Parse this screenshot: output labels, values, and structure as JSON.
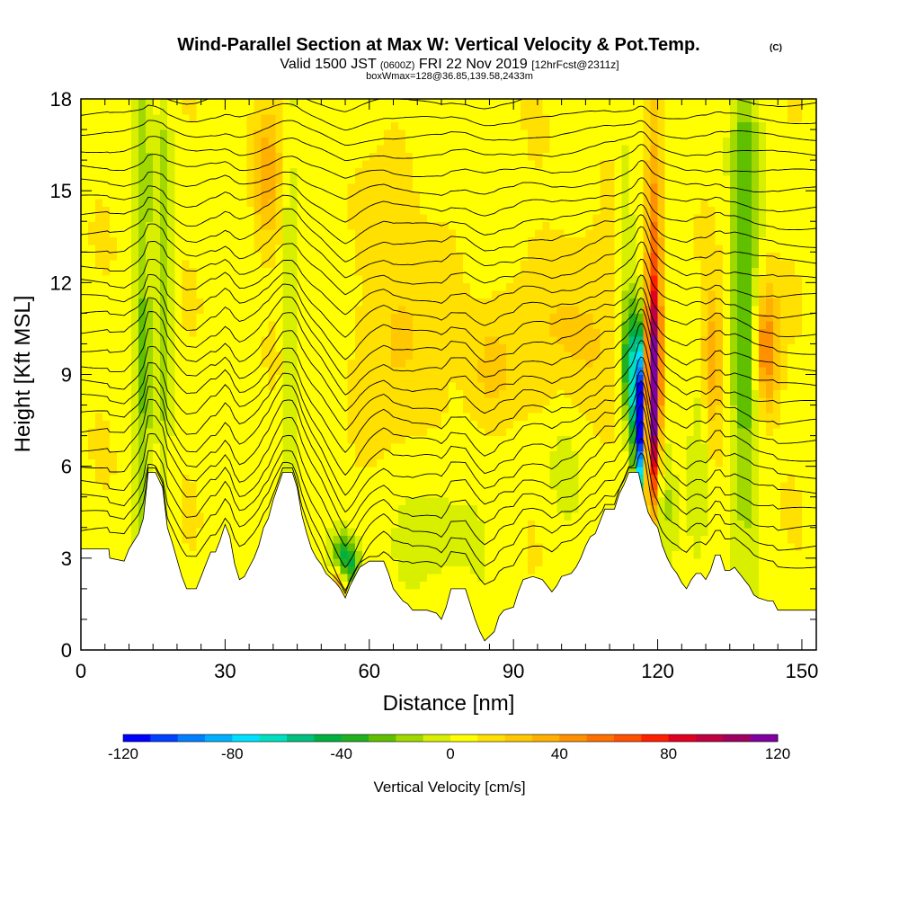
{
  "titles": {
    "main": "Wind-Parallel Section at Max W: Vertical Velocity & Pot.Temp.",
    "copyright": "(C)",
    "valid_prefix": "Valid 1500 JST",
    "valid_utc": "(0600Z)",
    "valid_date": "FRI 22 Nov 2019",
    "forecast": "[12hrFcst@2311z]",
    "box_info": "boxWmax=128@36.85,139.58,2433m"
  },
  "chart_data": {
    "type": "heatmap",
    "xlabel": "Distance [nm]",
    "ylabel": "Height [Kft MSL]",
    "xlim": [
      0,
      153
    ],
    "ylim": [
      0,
      18
    ],
    "x_ticks": [
      0,
      30,
      60,
      90,
      120,
      150
    ],
    "y_ticks": [
      0,
      3,
      6,
      9,
      12,
      15,
      18
    ],
    "terrain": [
      [
        0,
        3.3
      ],
      [
        5,
        3.3
      ],
      [
        5.8,
        3.3
      ],
      [
        6,
        3.0
      ],
      [
        9,
        2.9
      ],
      [
        10,
        3.3
      ],
      [
        12,
        3.8
      ],
      [
        13,
        4.3
      ],
      [
        14,
        5.8
      ],
      [
        15.5,
        5.8
      ],
      [
        17,
        5.3
      ],
      [
        18,
        4.0
      ],
      [
        19,
        3.5
      ],
      [
        21,
        2.4
      ],
      [
        22,
        2.0
      ],
      [
        24,
        2.0
      ],
      [
        25,
        2.4
      ],
      [
        26,
        2.8
      ],
      [
        27,
        3.2
      ],
      [
        28,
        3.2
      ],
      [
        29,
        3.6
      ],
      [
        30,
        4.1
      ],
      [
        31,
        3.7
      ],
      [
        32,
        2.8
      ],
      [
        33,
        2.3
      ],
      [
        34,
        2.4
      ],
      [
        35,
        2.7
      ],
      [
        36,
        3.0
      ],
      [
        37,
        3.4
      ],
      [
        38,
        4.0
      ],
      [
        39,
        4.3
      ],
      [
        40,
        4.9
      ],
      [
        42,
        5.8
      ],
      [
        44,
        5.8
      ],
      [
        45,
        5.3
      ],
      [
        46,
        4.4
      ],
      [
        47,
        3.8
      ],
      [
        48,
        3.3
      ],
      [
        49,
        3.0
      ],
      [
        50,
        2.8
      ],
      [
        51,
        2.5
      ],
      [
        53,
        2.2
      ],
      [
        54,
        2.0
      ],
      [
        55,
        1.7
      ],
      [
        56,
        2.1
      ],
      [
        57,
        2.4
      ],
      [
        58,
        2.7
      ],
      [
        60,
        2.9
      ],
      [
        63,
        2.9
      ],
      [
        64,
        2.5
      ],
      [
        65,
        2.0
      ],
      [
        67,
        1.6
      ],
      [
        68,
        1.5
      ],
      [
        69,
        1.3
      ],
      [
        72,
        1.3
      ],
      [
        74,
        1.2
      ],
      [
        75,
        1.0
      ],
      [
        76,
        1.4
      ],
      [
        77,
        2.0
      ],
      [
        80,
        2.0
      ],
      [
        82,
        1.0
      ],
      [
        83,
        0.6
      ],
      [
        84,
        0.3
      ],
      [
        86,
        0.6
      ],
      [
        87,
        1.1
      ],
      [
        88,
        1.3
      ],
      [
        90,
        1.4
      ],
      [
        91,
        1.9
      ],
      [
        92,
        2.3
      ],
      [
        94,
        2.4
      ],
      [
        96,
        2.3
      ],
      [
        97,
        2.1
      ],
      [
        98,
        1.9
      ],
      [
        99,
        2.1
      ],
      [
        100,
        2.4
      ],
      [
        102,
        2.5
      ],
      [
        103,
        2.7
      ],
      [
        104,
        3.0
      ],
      [
        105,
        3.4
      ],
      [
        106,
        3.7
      ],
      [
        107,
        3.8
      ],
      [
        108,
        4.2
      ],
      [
        109,
        4.6
      ],
      [
        111,
        4.6
      ],
      [
        112,
        5.1
      ],
      [
        113,
        5.4
      ],
      [
        114,
        5.8
      ],
      [
        116,
        5.8
      ],
      [
        117,
        5.1
      ],
      [
        118,
        4.5
      ],
      [
        119,
        4.2
      ],
      [
        120,
        4.0
      ],
      [
        121,
        3.4
      ],
      [
        122,
        3.0
      ],
      [
        123,
        2.7
      ],
      [
        124,
        2.5
      ],
      [
        125,
        2.2
      ],
      [
        126,
        2.0
      ],
      [
        127,
        2.3
      ],
      [
        128,
        2.5
      ],
      [
        129,
        2.5
      ],
      [
        130,
        2.3
      ],
      [
        131,
        2.6
      ],
      [
        132,
        3.1
      ],
      [
        133,
        3.1
      ],
      [
        134,
        2.6
      ],
      [
        135,
        2.6
      ],
      [
        136,
        2.7
      ],
      [
        137,
        2.5
      ],
      [
        138,
        2.3
      ],
      [
        139,
        2.1
      ],
      [
        140,
        1.8
      ],
      [
        141,
        1.7
      ],
      [
        143,
        1.6
      ],
      [
        144,
        1.6
      ],
      [
        145,
        1.3
      ],
      [
        148,
        1.3
      ],
      [
        153,
        1.3
      ]
    ],
    "w_features": [
      {
        "x": 118.8,
        "y": 7.7,
        "sx": 1.0,
        "sy": 2.4,
        "w": 95
      },
      {
        "x": 119.5,
        "y": 10.0,
        "sx": 1.2,
        "sy": 2.5,
        "w": 45
      },
      {
        "x": 119.3,
        "y": 14.5,
        "sx": 1.3,
        "sy": 3.5,
        "w": 30
      },
      {
        "x": 116.3,
        "y": 7.5,
        "sx": 0.9,
        "sy": 1.8,
        "w": -125
      },
      {
        "x": 114.5,
        "y": 9.2,
        "sx": 1.4,
        "sy": 1.4,
        "w": -55
      },
      {
        "x": 113.5,
        "y": 13.0,
        "sx": 1.5,
        "sy": 4.0,
        "w": -15
      },
      {
        "x": 55.0,
        "y": 2.9,
        "sx": 2.0,
        "sy": 0.6,
        "w": -60
      },
      {
        "x": 53.5,
        "y": 2.3,
        "sx": 1.2,
        "sy": 0.5,
        "w": 45
      },
      {
        "x": 13.0,
        "y": 11.0,
        "sx": 1.2,
        "sy": 7.0,
        "w": -25
      },
      {
        "x": 17.5,
        "y": 12.5,
        "sx": 1.0,
        "sy": 6.0,
        "w": -20
      },
      {
        "x": 43.5,
        "y": 10.0,
        "sx": 0.9,
        "sy": 7.0,
        "w": -18
      },
      {
        "x": 138.0,
        "y": 12.0,
        "sx": 2.0,
        "sy": 6.0,
        "w": -35
      },
      {
        "x": 128.5,
        "y": 6.0,
        "sx": 1.5,
        "sy": 2.0,
        "w": -20
      },
      {
        "x": 121.5,
        "y": 5.0,
        "sx": 1.5,
        "sy": 1.5,
        "w": -15
      },
      {
        "x": 76.0,
        "y": 4.2,
        "sx": 6.0,
        "sy": 1.5,
        "w": -12
      },
      {
        "x": 142.5,
        "y": 9.8,
        "sx": 1.8,
        "sy": 1.4,
        "w": 50
      },
      {
        "x": 131.5,
        "y": 9.6,
        "sx": 1.5,
        "sy": 1.5,
        "w": 32
      },
      {
        "x": 38.5,
        "y": 15.5,
        "sx": 2.0,
        "sy": 1.5,
        "w": 28
      },
      {
        "x": 67.0,
        "y": 10.0,
        "sx": 5.0,
        "sy": 2.0,
        "w": 20
      },
      {
        "x": 85.5,
        "y": 9.0,
        "sx": 3.5,
        "sy": 1.5,
        "w": 22
      },
      {
        "x": 103.0,
        "y": 10.5,
        "sx": 6.0,
        "sy": 2.5,
        "w": 18
      },
      {
        "x": 66.0,
        "y": 15.5,
        "sx": 3.0,
        "sy": 2.0,
        "w": 12
      },
      {
        "x": 100.0,
        "y": 6.5,
        "sx": 3.0,
        "sy": 2.0,
        "w": -10
      }
    ],
    "theta_contours": {
      "base_kft": 3.4,
      "spacing_kft": 0.56,
      "count": 28,
      "bumps": [
        {
          "x": 55,
          "h": -1.2,
          "s": 3
        },
        {
          "x": 59,
          "h": -0.6,
          "s": 5
        },
        {
          "x": 117,
          "h": 1.6,
          "s": 1.2
        },
        {
          "x": 14.5,
          "h": 0.4,
          "s": 2
        },
        {
          "x": 43,
          "h": 0.4,
          "s": 2.5
        }
      ]
    },
    "colorbar": {
      "title": "Vertical Velocity [cm/s]",
      "min": -120,
      "max": 120,
      "ticks": [
        "-120",
        "-80",
        "-40",
        "0",
        "40",
        "80",
        "120"
      ],
      "colors": [
        "#0000ff",
        "#0040ff",
        "#0080ff",
        "#00b0ff",
        "#00e0ff",
        "#00e0c0",
        "#00c080",
        "#00b040",
        "#20b020",
        "#60c000",
        "#a0d800",
        "#d8f000",
        "#ffff00",
        "#ffe000",
        "#ffc800",
        "#ffb000",
        "#ff9000",
        "#ff7000",
        "#ff5000",
        "#ff2000",
        "#e00020",
        "#c00040",
        "#a00060",
        "#8000a0"
      ]
    }
  }
}
